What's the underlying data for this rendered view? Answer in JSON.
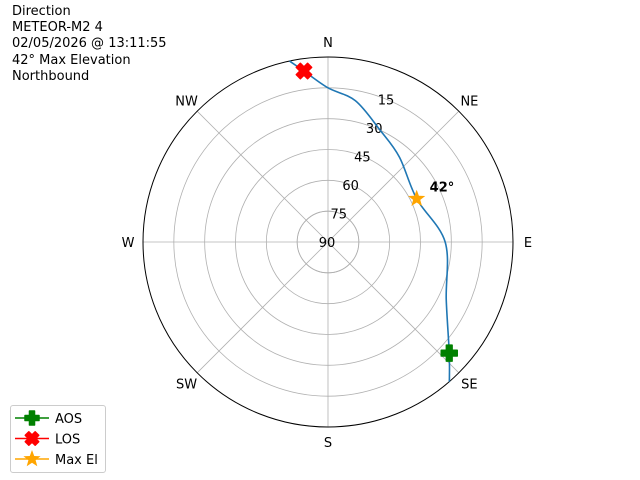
{
  "info": {
    "lines": [
      "Direction",
      "METEOR-M2 4",
      "02/05/2026 @ 13:11:55",
      "42° Max Elevation",
      "Northbound"
    ]
  },
  "chart_data": {
    "type": "polar",
    "theta_zero": "N",
    "theta_direction": "clockwise",
    "rlim": [
      90,
      0
    ],
    "grid": true,
    "direction_labels": [
      {
        "az": 0,
        "label": "N"
      },
      {
        "az": 45,
        "label": "NE"
      },
      {
        "az": 90,
        "label": "E"
      },
      {
        "az": 135,
        "label": "SE"
      },
      {
        "az": 180,
        "label": "S"
      },
      {
        "az": 225,
        "label": "SW"
      },
      {
        "az": 270,
        "label": "W"
      },
      {
        "az": 315,
        "label": "NW"
      }
    ],
    "elevation_ticks": [
      15,
      30,
      45,
      60,
      75,
      90
    ],
    "path": {
      "color": "#1f77b4",
      "points": [
        {
          "az": 139,
          "el": 0
        },
        {
          "az": 132.5,
          "el": 10
        },
        {
          "az": 116,
          "el": 26
        },
        {
          "az": 90,
          "el": 33
        },
        {
          "az": 64,
          "el": 42
        },
        {
          "az": 40,
          "el": 36
        },
        {
          "az": 25,
          "el": 30
        },
        {
          "az": 11,
          "el": 20
        },
        {
          "az": 0,
          "el": 15
        },
        {
          "az": 352,
          "el": 6
        },
        {
          "az": 348,
          "el": 0
        }
      ]
    },
    "markers": [
      {
        "name": "AOS",
        "az": 132.5,
        "el": 10,
        "color": "#008000",
        "shape": "plus"
      },
      {
        "name": "LOS",
        "az": 352,
        "el": 6,
        "color": "#ff0000",
        "shape": "x"
      },
      {
        "name": "Max El",
        "az": 64,
        "el": 42,
        "color": "#ffa500",
        "shape": "star"
      }
    ],
    "annotation": {
      "text": "42°",
      "az": 64,
      "el": 42
    },
    "legend": {
      "placement": "lower-left",
      "entries": [
        "AOS",
        "LOS",
        "Max El"
      ]
    }
  }
}
